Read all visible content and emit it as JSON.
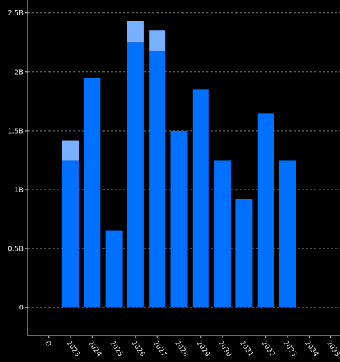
{
  "chart_data": {
    "type": "stacked-bar",
    "categories": [
      "D",
      "2023",
      "2024",
      "2025",
      "2026",
      "2027",
      "2028",
      "2029",
      "2030",
      "2031",
      "2032",
      "2033",
      "2034",
      "2035"
    ],
    "series": [
      {
        "color": "#0070ff",
        "values": [
          null,
          1.25,
          1.95,
          0.65,
          2.25,
          2.18,
          1.5,
          1.85,
          1.25,
          0.92,
          1.65,
          1.25,
          null,
          null
        ]
      },
      {
        "color": "#77b0ff",
        "values": [
          null,
          0.17,
          null,
          null,
          0.18,
          0.17,
          null,
          null,
          null,
          null,
          null,
          null,
          null,
          null
        ]
      }
    ],
    "ylim": [
      -0.24,
      2.61
    ],
    "yticks": [
      0,
      {
        "value": 0.5,
        "label": "0.5B"
      },
      {
        "value": 1,
        "label": "1B"
      },
      {
        "value": 1.5,
        "label": "1.5B"
      },
      {
        "value": 2,
        "label": "2B"
      },
      {
        "value": 2.5,
        "label": "2.5B"
      }
    ],
    "grid": true
  }
}
